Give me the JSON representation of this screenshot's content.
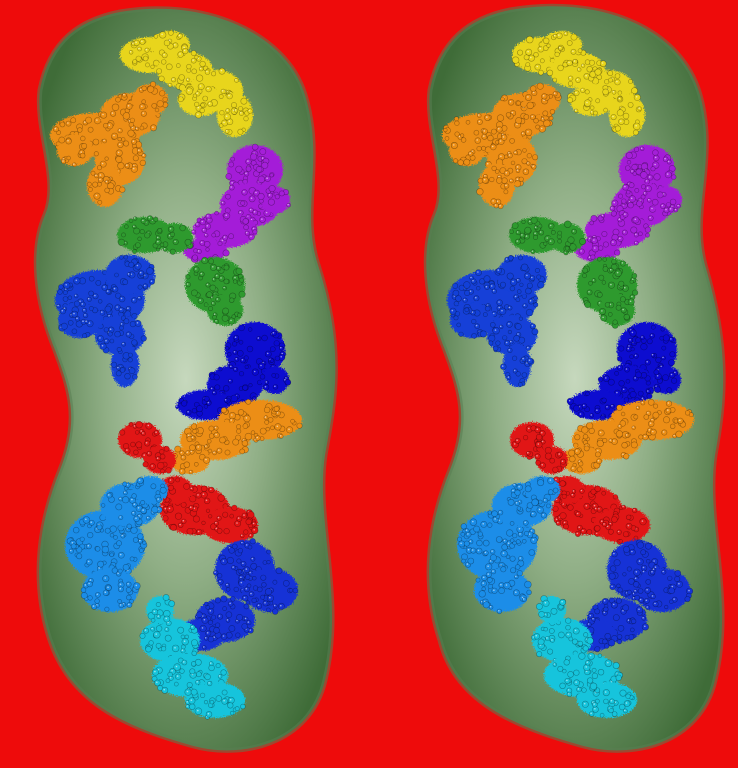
{
  "image": {
    "description_kind": "stereo pair of molecular assembly renderings",
    "background_color": "#ee0b0b",
    "envelope": {
      "fill_center": "#b9cdb0",
      "fill_edge": "#42703b",
      "rim": "#5a7d52"
    },
    "panels": [
      {
        "name": "left-view",
        "subunits": [
          {
            "name": "yellow-subunit",
            "color": "#e8d51a"
          },
          {
            "name": "orange-subunit-top",
            "color": "#ec8e14"
          },
          {
            "name": "purple-subunit",
            "color": "#a41fd8"
          },
          {
            "name": "green-subunit-left",
            "color": "#2f9a2f"
          },
          {
            "name": "green-subunit-right",
            "color": "#2f9a2f"
          },
          {
            "name": "blue-subunit-left",
            "color": "#1240d8"
          },
          {
            "name": "navy-subunit",
            "color": "#0a0ad0"
          },
          {
            "name": "orange-subunit-middle",
            "color": "#ec8e14"
          },
          {
            "name": "red-subunit-small",
            "color": "#e11414"
          },
          {
            "name": "red-subunit-center",
            "color": "#e11414"
          },
          {
            "name": "lightblue-subunit",
            "color": "#1a8de8"
          },
          {
            "name": "blue-subunit-lower",
            "color": "#1433d6"
          },
          {
            "name": "cyan-subunit",
            "color": "#16c4dc"
          }
        ]
      },
      {
        "name": "right-view",
        "subunits": [
          {
            "name": "yellow-subunit",
            "color": "#e8d51a"
          },
          {
            "name": "orange-subunit-top",
            "color": "#ec8e14"
          },
          {
            "name": "purple-subunit",
            "color": "#a41fd8"
          },
          {
            "name": "green-subunit-left",
            "color": "#2f9a2f"
          },
          {
            "name": "green-subunit-right",
            "color": "#2f9a2f"
          },
          {
            "name": "blue-subunit-left",
            "color": "#1240d8"
          },
          {
            "name": "navy-subunit",
            "color": "#0a0ad0"
          },
          {
            "name": "orange-subunit-middle",
            "color": "#ec8e14"
          },
          {
            "name": "red-subunit-small",
            "color": "#e11414"
          },
          {
            "name": "red-subunit-center",
            "color": "#e11414"
          },
          {
            "name": "lightblue-subunit",
            "color": "#1a8de8"
          },
          {
            "name": "blue-subunit-lower",
            "color": "#1433d6"
          },
          {
            "name": "cyan-subunit",
            "color": "#16c4dc"
          }
        ]
      }
    ]
  }
}
